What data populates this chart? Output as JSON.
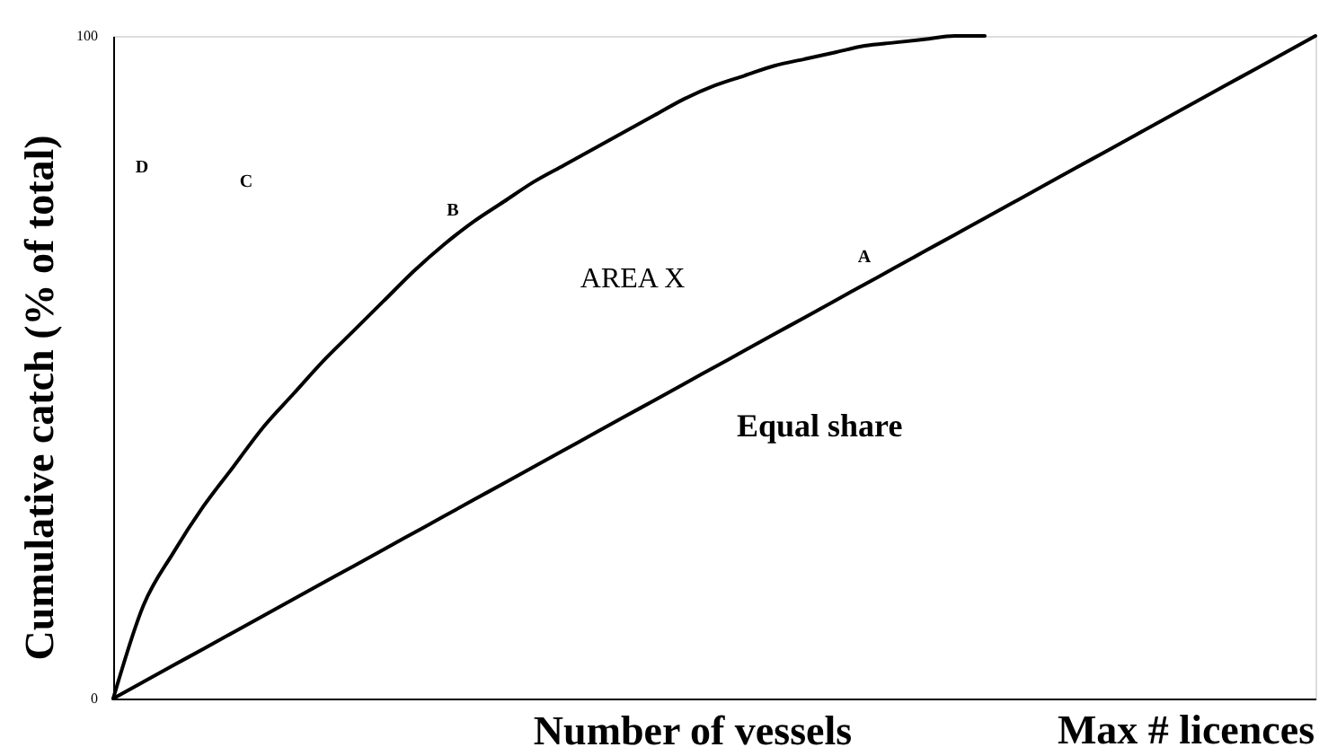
{
  "chart_data": {
    "type": "line",
    "xlabel": "Number of vessels",
    "ylabel": "Cumulative catch (% of total)",
    "categories": [
      null,
      null,
      null,
      null,
      null,
      null,
      null,
      null,
      null,
      null,
      null,
      null,
      null,
      null,
      null,
      null,
      null,
      null,
      null,
      null,
      null,
      null,
      null,
      null,
      null,
      null,
      null,
      null,
      null,
      null,
      null,
      null,
      null,
      null,
      null,
      null,
      null,
      null,
      null,
      null,
      null
    ],
    "series": [
      {
        "color": "#000000",
        "values": [
          0,
          14,
          22,
          29,
          35,
          41,
          46,
          51,
          55.5,
          60,
          64.5,
          68.5,
          72,
          75,
          78,
          80.5,
          83,
          85.5,
          88,
          90.5,
          92.5,
          94,
          95.5,
          96.5,
          97.5,
          98.5,
          99,
          99.5,
          100,
          100,
          null,
          null,
          null,
          null,
          null,
          null,
          null,
          null,
          null,
          null,
          null
        ]
      },
      {
        "name": "Equal share",
        "color": "#000000",
        "values": [
          0,
          2.5,
          5,
          7.5,
          10,
          12.5,
          15,
          17.5,
          20,
          22.5,
          25,
          27.5,
          30,
          32.5,
          35,
          37.5,
          40,
          42.5,
          45,
          47.5,
          50,
          52.5,
          55,
          57.5,
          60,
          62.5,
          65,
          67.5,
          70,
          72.5,
          75,
          77.5,
          80,
          82.5,
          85,
          87.5,
          90,
          92.5,
          95,
          97.5,
          100
        ]
      }
    ],
    "ylim": [
      0,
      100
    ],
    "yticks": [
      0,
      100
    ],
    "tick_labels": "y",
    "annotations": [
      "D",
      "C",
      "B",
      "AREA X",
      "A",
      "Max # licences"
    ]
  }
}
